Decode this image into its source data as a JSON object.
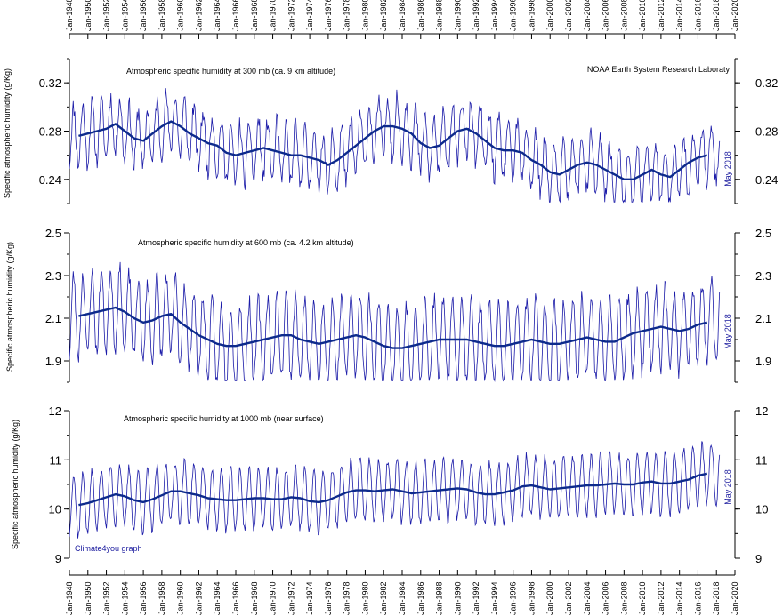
{
  "credits": {
    "source": "NOAA Earth System Research Laboraty",
    "graph": "Climate4you graph"
  },
  "x_axis": {
    "min_year": 1948,
    "max_year": 2020,
    "tick_labels": [
      "Jan-1948",
      "Jan-1950",
      "Jan-1952",
      "Jan-1954",
      "Jan-1956",
      "Jan-1958",
      "Jan-1960",
      "Jan-1962",
      "Jan-1964",
      "Jan-1966",
      "Jan-1968",
      "Jan-1970",
      "Jan-1972",
      "Jan-1974",
      "Jan-1976",
      "Jan-1978",
      "Jan-1980",
      "Jan-1982",
      "Jan-1984",
      "Jan-1986",
      "Jan-1988",
      "Jan-1990",
      "Jan-1992",
      "Jan-1994",
      "Jan-1996",
      "Jan-1998",
      "Jan-2000",
      "Jan-2002",
      "Jan-2004",
      "Jan-2006",
      "Jan-2008",
      "Jan-2010",
      "Jan-2012",
      "Jan-2014",
      "Jan-2016",
      "Jan-2018",
      "Jan-2020"
    ]
  },
  "colors": {
    "monthly": "#1a1aa8",
    "smoothed": "#0d2a8c",
    "axis": "#000000"
  },
  "chart_data": [
    {
      "type": "line",
      "title": "Atmospheric specific humidity at 300 mb (ca. 9 km altitude)",
      "ylabel": "Specific atmospheric humidity (g/Kg)",
      "date_label": "May 2018",
      "yticks": [
        "0.24",
        "0.28",
        "0.32"
      ],
      "ytick_values": [
        0.24,
        0.28,
        0.32
      ],
      "ylim": [
        0.22,
        0.34
      ],
      "grid": false,
      "series": [
        {
          "x": [
            1949,
            1950,
            1951,
            1952,
            1953,
            1954,
            1955,
            1956,
            1957,
            1958,
            1959,
            1960,
            1961,
            1962,
            1963,
            1964,
            1965,
            1966,
            1967,
            1968,
            1969,
            1970,
            1971,
            1972,
            1973,
            1974,
            1975,
            1976,
            1977,
            1978,
            1979,
            1980,
            1981,
            1982,
            1983,
            1984,
            1985,
            1986,
            1987,
            1988,
            1989,
            1990,
            1991,
            1992,
            1993,
            1994,
            1995,
            1996,
            1997,
            1998,
            1999,
            2000,
            2001,
            2002,
            2003,
            2004,
            2005,
            2006,
            2007,
            2008,
            2009,
            2010,
            2011,
            2012,
            2013,
            2014,
            2015,
            2016,
            2017
          ],
          "values": [
            0.276,
            0.278,
            0.28,
            0.282,
            0.286,
            0.28,
            0.274,
            0.272,
            0.278,
            0.284,
            0.288,
            0.284,
            0.278,
            0.274,
            0.27,
            0.268,
            0.262,
            0.26,
            0.262,
            0.264,
            0.266,
            0.264,
            0.262,
            0.26,
            0.26,
            0.258,
            0.256,
            0.252,
            0.256,
            0.262,
            0.268,
            0.274,
            0.28,
            0.284,
            0.284,
            0.282,
            0.278,
            0.27,
            0.266,
            0.268,
            0.274,
            0.28,
            0.282,
            0.278,
            0.272,
            0.266,
            0.264,
            0.264,
            0.262,
            0.256,
            0.252,
            0.246,
            0.244,
            0.248,
            0.252,
            0.254,
            0.252,
            0.248,
            0.244,
            0.24,
            0.24,
            0.244,
            0.248,
            0.244,
            0.242,
            0.248,
            0.254,
            0.258,
            0.26
          ]
        }
      ],
      "monthly": {
        "start_year": 1948,
        "end_year": 2018.4,
        "amplitude": 0.024,
        "noise": 0.008,
        "seed": 11
      }
    },
    {
      "type": "line",
      "title": "Atmospheric specific humidity at 600 mb (ca. 4.2 km altitude)",
      "ylabel": "Specific atmospheric humidity (g/Kg)",
      "date_label": "May 2018",
      "yticks": [
        "1.9",
        "2.1",
        "2.3",
        "2.5"
      ],
      "ytick_values": [
        1.9,
        2.1,
        2.3,
        2.5
      ],
      "ylim": [
        1.8,
        2.5
      ],
      "grid": false,
      "series": [
        {
          "x": [
            1949,
            1950,
            1951,
            1952,
            1953,
            1954,
            1955,
            1956,
            1957,
            1958,
            1959,
            1960,
            1961,
            1962,
            1963,
            1964,
            1965,
            1966,
            1967,
            1968,
            1969,
            1970,
            1971,
            1972,
            1973,
            1974,
            1975,
            1976,
            1977,
            1978,
            1979,
            1980,
            1981,
            1982,
            1983,
            1984,
            1985,
            1986,
            1987,
            1988,
            1989,
            1990,
            1991,
            1992,
            1993,
            1994,
            1995,
            1996,
            1997,
            1998,
            1999,
            2000,
            2001,
            2002,
            2003,
            2004,
            2005,
            2006,
            2007,
            2008,
            2009,
            2010,
            2011,
            2012,
            2013,
            2014,
            2015,
            2016,
            2017
          ],
          "values": [
            2.11,
            2.12,
            2.13,
            2.14,
            2.15,
            2.13,
            2.1,
            2.08,
            2.09,
            2.11,
            2.12,
            2.08,
            2.05,
            2.02,
            2.0,
            1.98,
            1.97,
            1.97,
            1.98,
            1.99,
            2.0,
            2.01,
            2.02,
            2.02,
            2.0,
            1.99,
            1.98,
            1.99,
            2.0,
            2.01,
            2.02,
            2.01,
            1.99,
            1.97,
            1.96,
            1.96,
            1.97,
            1.98,
            1.99,
            2.0,
            2.0,
            2.0,
            2.0,
            1.99,
            1.98,
            1.97,
            1.97,
            1.98,
            1.99,
            2.0,
            1.99,
            1.98,
            1.98,
            1.99,
            2.0,
            2.01,
            2.0,
            1.99,
            1.99,
            2.01,
            2.03,
            2.04,
            2.05,
            2.06,
            2.05,
            2.04,
            2.05,
            2.07,
            2.08
          ]
        }
      ],
      "monthly": {
        "start_year": 1948,
        "end_year": 2018.4,
        "amplitude": 0.19,
        "noise": 0.04,
        "seed": 23
      }
    },
    {
      "type": "line",
      "title": "Atmospheric specific humidity at 1000 mb (near surface)",
      "ylabel": "Specific atmospheric humidity (g/Kg)",
      "date_label": "May 2018",
      "yticks": [
        "9",
        "10",
        "11",
        "12"
      ],
      "ytick_values": [
        9,
        10,
        11,
        12
      ],
      "ylim": [
        9,
        12
      ],
      "grid": false,
      "series": [
        {
          "x": [
            1949,
            1950,
            1951,
            1952,
            1953,
            1954,
            1955,
            1956,
            1957,
            1958,
            1959,
            1960,
            1961,
            1962,
            1963,
            1964,
            1965,
            1966,
            1967,
            1968,
            1969,
            1970,
            1971,
            1972,
            1973,
            1974,
            1975,
            1976,
            1977,
            1978,
            1979,
            1980,
            1981,
            1982,
            1983,
            1984,
            1985,
            1986,
            1987,
            1988,
            1989,
            1990,
            1991,
            1992,
            1993,
            1994,
            1995,
            1996,
            1997,
            1998,
            1999,
            2000,
            2001,
            2002,
            2003,
            2004,
            2005,
            2006,
            2007,
            2008,
            2009,
            2010,
            2011,
            2012,
            2013,
            2014,
            2015,
            2016,
            2017
          ],
          "values": [
            10.08,
            10.12,
            10.18,
            10.24,
            10.3,
            10.26,
            10.18,
            10.14,
            10.2,
            10.28,
            10.36,
            10.36,
            10.32,
            10.28,
            10.22,
            10.2,
            10.18,
            10.18,
            10.2,
            10.22,
            10.22,
            10.2,
            10.2,
            10.24,
            10.22,
            10.16,
            10.14,
            10.18,
            10.26,
            10.34,
            10.38,
            10.38,
            10.36,
            10.38,
            10.4,
            10.36,
            10.32,
            10.34,
            10.36,
            10.38,
            10.4,
            10.42,
            10.4,
            10.34,
            10.3,
            10.3,
            10.34,
            10.38,
            10.46,
            10.48,
            10.44,
            10.4,
            10.42,
            10.44,
            10.46,
            10.48,
            10.48,
            10.5,
            10.52,
            10.5,
            10.5,
            10.54,
            10.56,
            10.52,
            10.52,
            10.56,
            10.6,
            10.68,
            10.72
          ]
        }
      ],
      "monthly": {
        "start_year": 1948,
        "end_year": 2018.4,
        "amplitude": 0.62,
        "noise": 0.09,
        "seed": 37
      }
    }
  ]
}
